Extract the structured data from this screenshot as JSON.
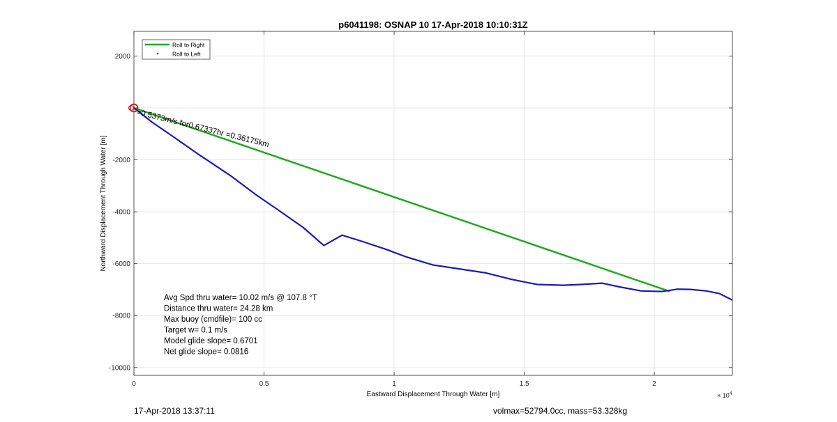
{
  "chart_data": {
    "type": "line",
    "title": "p6041198: OSNAP 10 17-Apr-2018 10:10:31Z",
    "xlabel": "Eastward Displacement Through Water [m]",
    "ylabel": "Northward Displacement Through Water [m]",
    "x_exponent_label": "× 10",
    "x_exponent_power": "4",
    "xlim": [
      0,
      23000
    ],
    "ylim": [
      -10300,
      2950
    ],
    "x_ticks": [
      0,
      5000,
      10000,
      15000,
      20000
    ],
    "x_tick_labels": [
      "0",
      "0.5",
      "1",
      "1.5",
      "2"
    ],
    "y_ticks": [
      2000,
      0,
      -2000,
      -4000,
      -6000,
      -8000,
      -10000
    ],
    "y_tick_labels": [
      "2000",
      "",
      "-2000",
      "-4000",
      "-6000",
      "-8000",
      "-10000"
    ],
    "grid": true,
    "legend": {
      "position": "top-left",
      "entries": [
        "Roll to Right",
        "Roll to Left"
      ]
    },
    "colors": {
      "green_line": "#1faa1f",
      "track": "#1a1ab8",
      "markers": "#d01414",
      "grid": "#e6e6e6"
    },
    "series": [
      {
        "name": "",
        "color": "#1faa1f",
        "x": [
          0,
          20600
        ],
        "y": [
          0,
          -7070
        ]
      },
      {
        "name": "",
        "color": "#1a1ab8",
        "x": [
          0,
          700,
          1500,
          2500,
          3700,
          4700,
          5500,
          6500,
          7300,
          8000,
          8800,
          9700,
          10500,
          11500,
          12500,
          13500,
          14500,
          15500,
          16500,
          17200,
          18000,
          18700,
          19500,
          20300,
          20900,
          21400,
          22000,
          22500,
          23000
        ],
        "y": [
          0,
          -550,
          -1100,
          -1800,
          -2600,
          -3350,
          -3900,
          -4600,
          -5300,
          -4900,
          -5150,
          -5450,
          -5750,
          -6050,
          -6200,
          -6350,
          -6600,
          -6800,
          -6830,
          -6800,
          -6750,
          -6900,
          -7050,
          -7070,
          -6980,
          -6990,
          -7050,
          -7150,
          -7400
        ]
      }
    ],
    "annotations": {
      "leg_label": "=0.5373m/s for0.67337hr =0.36175km",
      "stats": [
        "Avg Spd thru water= 10.02 m/s @ 107.8 °T",
        "Distance thru water= 24.28 km",
        "Max buoy (cmdfile)= 100 cc",
        "Target w= 0.1 m/s",
        "Model glide slope= 0.6701",
        "Net glide slope= 0.0816"
      ]
    }
  },
  "footer": {
    "date": "17-Apr-2018 13:37:11",
    "volmax": "volmax=52794.0cc, mass=53.328kg"
  }
}
